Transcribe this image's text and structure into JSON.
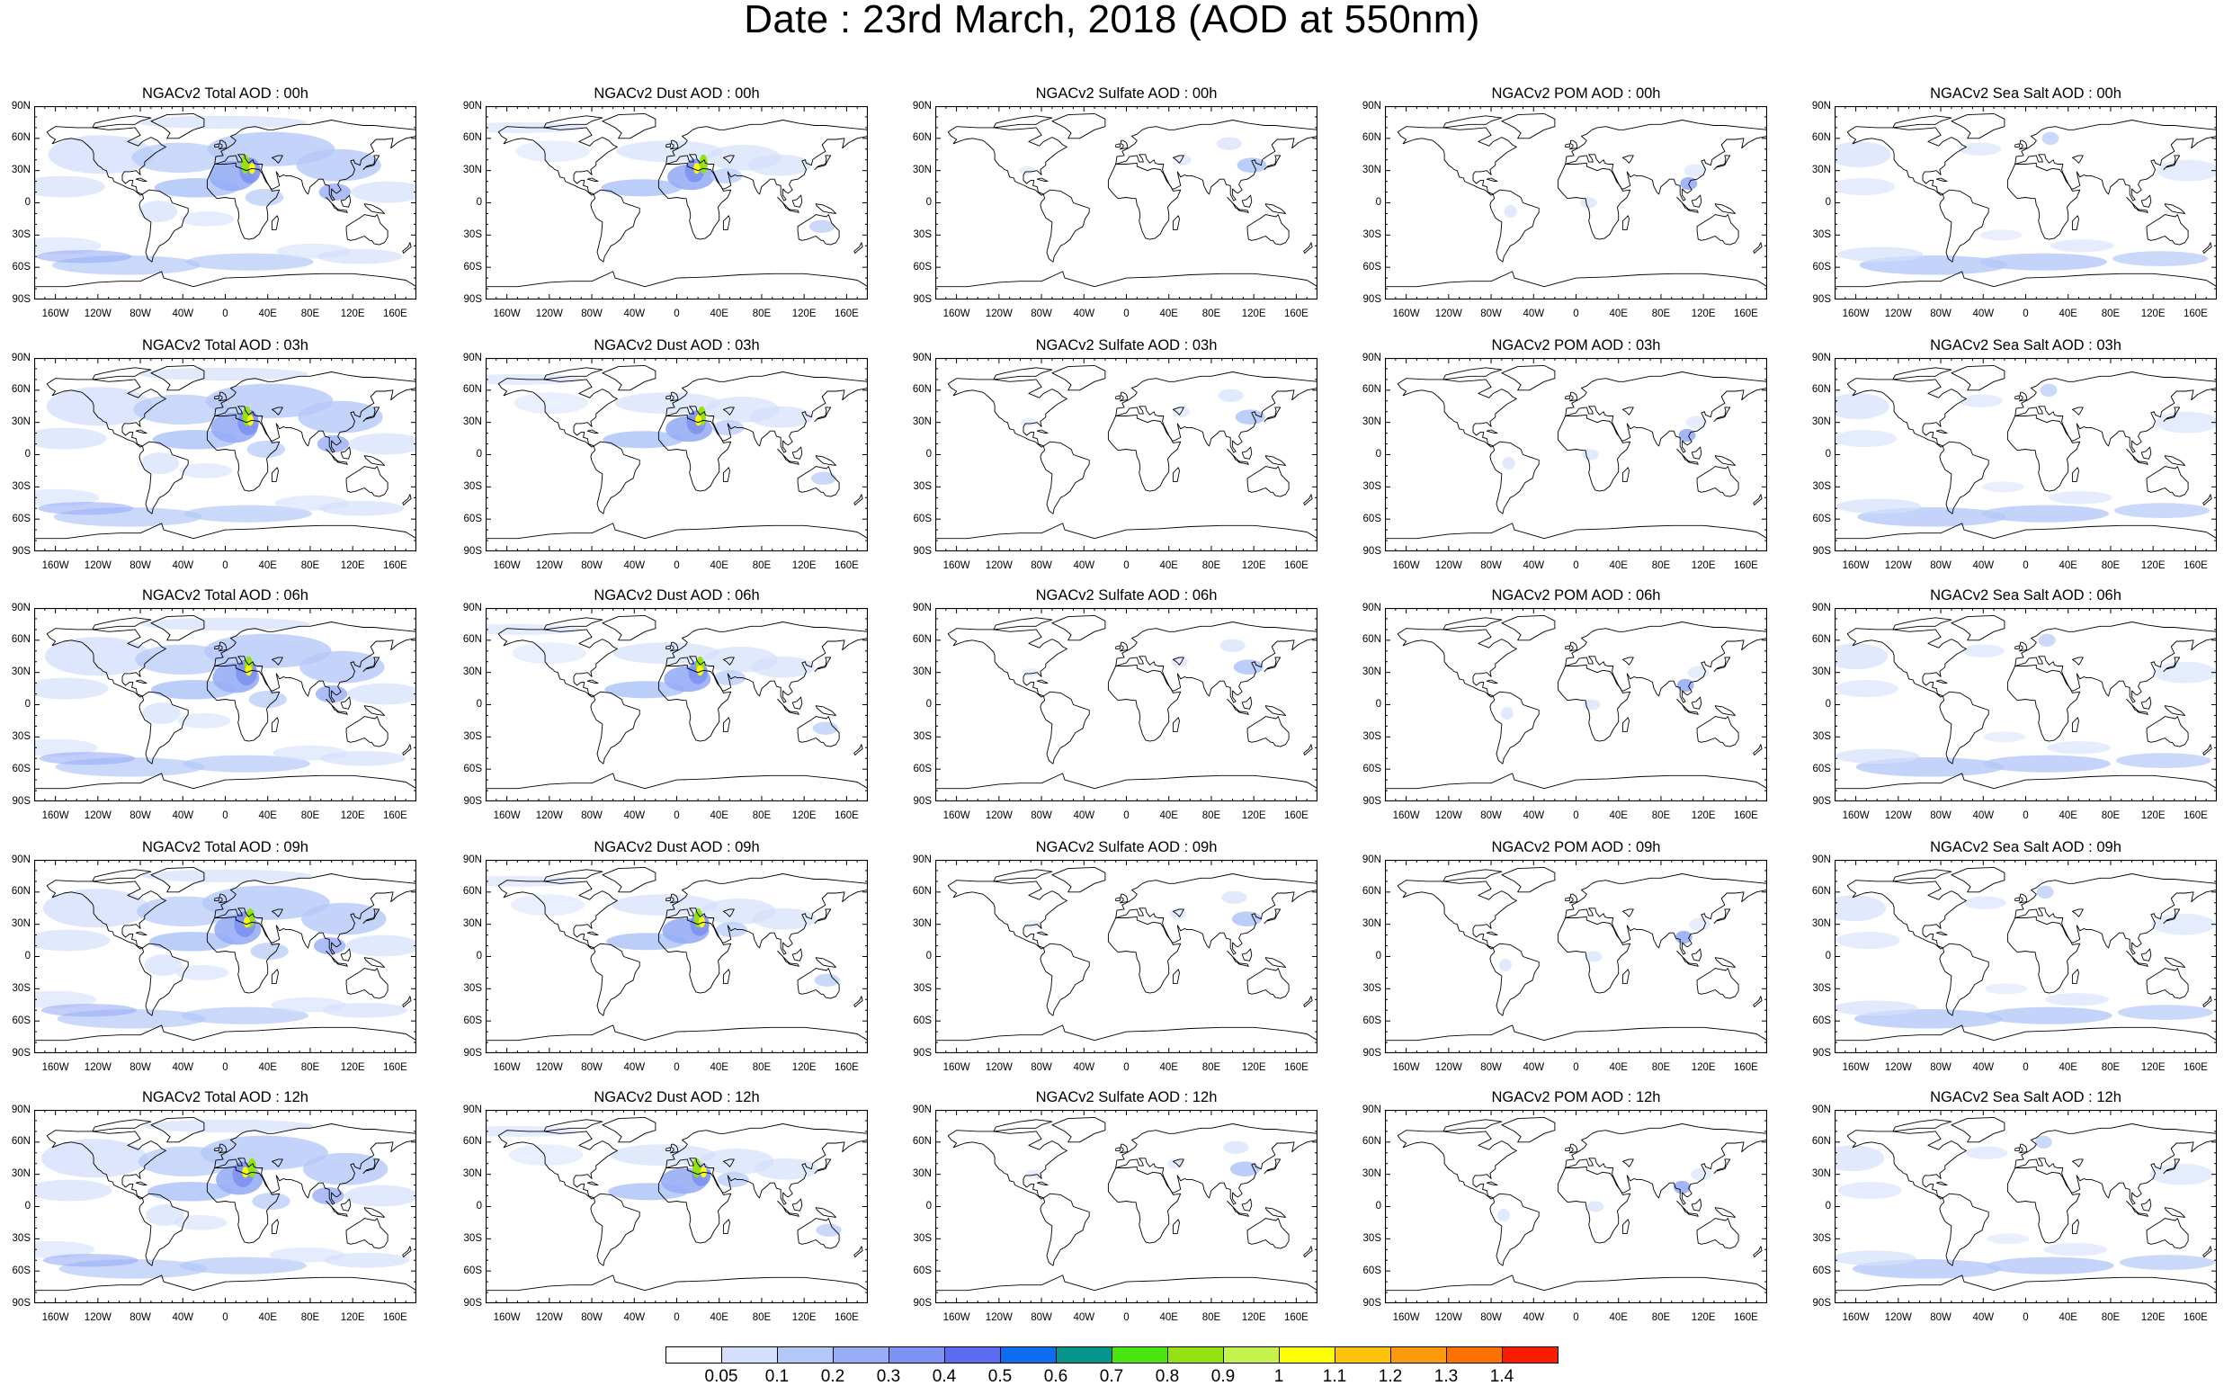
{
  "title": "Date : 23rd March, 2018 (AOD at 550nm)",
  "lat_labels": [
    "90N",
    "60N",
    "30N",
    "0",
    "30S",
    "60S",
    "90S"
  ],
  "lon_labels": [
    "160W",
    "120W",
    "80W",
    "40W",
    "0",
    "40E",
    "80E",
    "120E",
    "160E"
  ],
  "colorbar": {
    "labels": [
      "0.05",
      "0.1",
      "0.2",
      "0.3",
      "0.4",
      "0.5",
      "0.6",
      "0.7",
      "0.8",
      "0.9",
      "1",
      "1.1",
      "1.2",
      "1.3",
      "1.4"
    ],
    "colors": [
      "#ffffff",
      "#d4e0fb",
      "#b4c8f8",
      "#97adf6",
      "#7d92f2",
      "#5c6bef",
      "#0e6cef",
      "#08958c",
      "#49e510",
      "#94e114",
      "#c6f24d",
      "#fdfd04",
      "#fcc20c",
      "#fc9a0c",
      "#fc7104",
      "#fa1d00"
    ]
  },
  "rows": [
    {
      "panels": [
        {
          "label": "NGACv2 Total AOD : 00h",
          "species": "total"
        },
        {
          "label": "NGACv2 Dust AOD : 00h",
          "species": "dust"
        },
        {
          "label": "NGACv2 Sulfate AOD : 00h",
          "species": "sulfate"
        },
        {
          "label": "NGACv2 POM AOD : 00h",
          "species": "pom"
        },
        {
          "label": "NGACv2 Sea Salt AOD : 00h",
          "species": "seasalt"
        }
      ]
    },
    {
      "panels": [
        {
          "label": "NGACv2 Total AOD : 03h",
          "species": "total"
        },
        {
          "label": "NGACv2 Dust AOD : 03h",
          "species": "dust"
        },
        {
          "label": "NGACv2 Sulfate AOD : 03h",
          "species": "sulfate"
        },
        {
          "label": "NGACv2 POM AOD : 03h",
          "species": "pom"
        },
        {
          "label": "NGACv2 Sea Salt AOD : 03h",
          "species": "seasalt"
        }
      ]
    },
    {
      "panels": [
        {
          "label": "NGACv2 Total AOD : 06h",
          "species": "total"
        },
        {
          "label": "NGACv2 Dust AOD : 06h",
          "species": "dust"
        },
        {
          "label": "NGACv2 Sulfate AOD : 06h",
          "species": "sulfate"
        },
        {
          "label": "NGACv2 POM AOD : 06h",
          "species": "pom"
        },
        {
          "label": "NGACv2 Sea Salt AOD : 06h",
          "species": "seasalt"
        }
      ]
    },
    {
      "panels": [
        {
          "label": "NGACv2 Total AOD : 09h",
          "species": "total"
        },
        {
          "label": "NGACv2 Dust AOD : 09h",
          "species": "dust"
        },
        {
          "label": "NGACv2 Sulfate AOD : 09h",
          "species": "sulfate"
        },
        {
          "label": "NGACv2 POM AOD : 09h",
          "species": "pom"
        },
        {
          "label": "NGACv2 Sea Salt  AOD : 09h",
          "species": "seasalt"
        }
      ]
    },
    {
      "panels": [
        {
          "label": "NGACv2 Total AOD :  12h",
          "species": "total"
        },
        {
          "label": "NGACv2 Dust AOD : 12h",
          "species": "dust"
        },
        {
          "label": "NGACv2 Sulfate AOD : 12h",
          "species": "sulfate"
        },
        {
          "label": "NGACv2 POM  AOD : 12h",
          "species": "pom"
        },
        {
          "label": "NGACv2 Sea Salt  AOD : 12h",
          "species": "seasalt"
        }
      ]
    }
  ]
}
